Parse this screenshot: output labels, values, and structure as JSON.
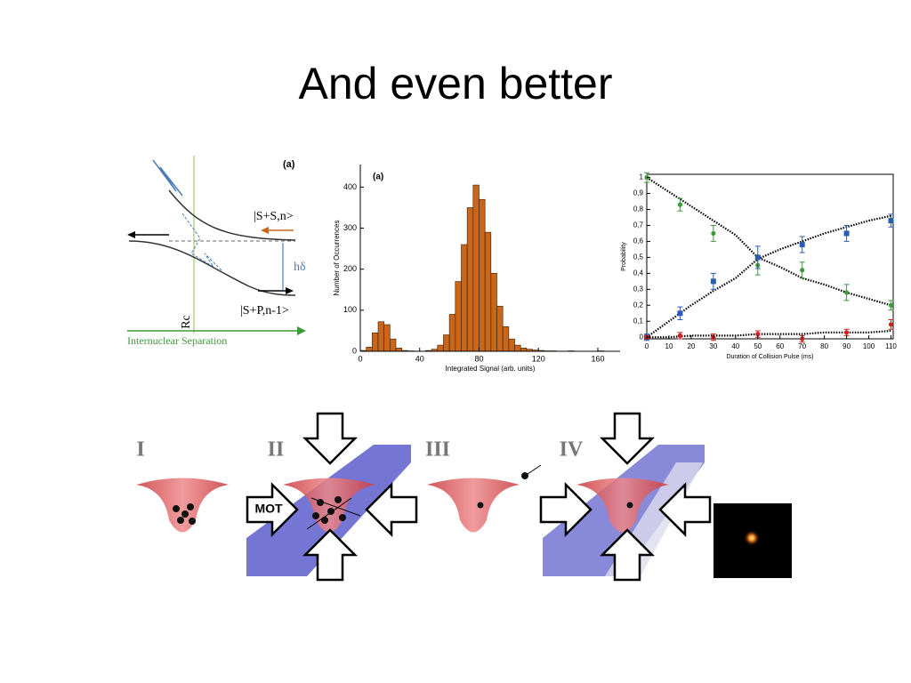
{
  "slide_title": "And even better",
  "potential_diagram": {
    "panel": "(a)",
    "upper_state": "|S+S,n>",
    "splitting": "hδ",
    "lower_state": "|S+P,n-1>",
    "crossing": "Rc",
    "x_label": "Internuclear Separation"
  },
  "chart_data": [
    {
      "type": "histogram",
      "panel": "(a)",
      "x_label": "Integrated Signal (arb. units)",
      "y_label": "Number of Occurrences",
      "bins": [
        0,
        4,
        8,
        12,
        16,
        20,
        24,
        28,
        32,
        36,
        40,
        44,
        48,
        52,
        56,
        60,
        64,
        68,
        72,
        76,
        80,
        84,
        88,
        92,
        96,
        100,
        104,
        108,
        112,
        116,
        120,
        124,
        128,
        132,
        136,
        140,
        144,
        148,
        152,
        156,
        160,
        164,
        168,
        172
      ],
      "counts": [
        2,
        10,
        45,
        72,
        65,
        30,
        8,
        2,
        1,
        0,
        0,
        2,
        5,
        15,
        40,
        90,
        170,
        260,
        350,
        405,
        370,
        290,
        190,
        110,
        60,
        30,
        15,
        8,
        5,
        3,
        2,
        1,
        1,
        0,
        0,
        1,
        0,
        0,
        0,
        0,
        1,
        0,
        0
      ],
      "color": "#c8661b",
      "xlim": [
        0,
        175
      ],
      "ylim": [
        0,
        455
      ],
      "xticks": [
        0,
        40,
        80,
        120,
        160
      ],
      "yticks": [
        0,
        100,
        200,
        300,
        400
      ]
    },
    {
      "type": "line",
      "x_label": "Duration of Collision Pulse (ms)",
      "y_label": "Probability",
      "x": [
        0,
        15,
        30,
        50,
        70,
        90,
        110
      ],
      "series": [
        {
          "color": "#3f9a3a",
          "values": [
            1.0,
            0.83,
            0.65,
            0.45,
            0.42,
            0.28,
            0.2
          ],
          "errors": [
            0.03,
            0.04,
            0.05,
            0.06,
            0.05,
            0.05,
            0.03
          ]
        },
        {
          "color": "#2a5db0",
          "values": [
            0,
            0.15,
            0.35,
            0.5,
            0.58,
            0.65,
            0.73
          ],
          "errors": [
            0.02,
            0.04,
            0.05,
            0.07,
            0.05,
            0.05,
            0.04
          ]
        },
        {
          "color": "#d02020",
          "values": [
            0,
            0.01,
            0.0,
            0.02,
            -0.01,
            0.03,
            0.08
          ],
          "errors": [
            0.01,
            0.02,
            0.02,
            0.02,
            0.02,
            0.02,
            0.03
          ]
        }
      ],
      "fit_x": [
        0,
        10,
        20,
        30,
        40,
        50,
        60,
        70,
        80,
        90,
        100,
        110
      ],
      "fits": [
        {
          "color": "#000000",
          "values": [
            1,
            0.91,
            0.82,
            0.73,
            0.64,
            0.5,
            0.44,
            0.37,
            0.33,
            0.28,
            0.24,
            0.2
          ]
        },
        {
          "color": "#000000",
          "values": [
            0,
            0.1,
            0.2,
            0.29,
            0.37,
            0.49,
            0.55,
            0.6,
            0.65,
            0.69,
            0.73,
            0.76
          ]
        },
        {
          "color": "#000000",
          "values": [
            0,
            0,
            0.01,
            0.01,
            0.01,
            0.02,
            0.02,
            0.02,
            0.03,
            0.03,
            0.03,
            0.04
          ]
        }
      ],
      "xlim": [
        0,
        111
      ],
      "ylim": [
        -0.01,
        1.02
      ],
      "xticks": [
        0,
        10,
        20,
        30,
        40,
        50,
        60,
        70,
        80,
        90,
        100,
        110
      ],
      "yticks": [
        0,
        {
          "value": 0.1,
          "label": "0,1"
        },
        {
          "value": 0.2,
          "label": "0,2"
        },
        {
          "value": 0.3,
          "label": "0,3"
        },
        {
          "value": 0.4,
          "label": "0,4"
        },
        {
          "value": 0.5,
          "label": "0,5"
        },
        {
          "value": 0.6,
          "label": "0,6"
        },
        {
          "value": 0.7,
          "label": "0,7"
        },
        {
          "value": 0.8,
          "label": "0,8"
        },
        {
          "value": 0.9,
          "label": "0,9"
        },
        1
      ]
    }
  ],
  "process_diagram": {
    "stages": [
      "I",
      "II",
      "III",
      "IV"
    ],
    "mot_label": "MOT"
  }
}
